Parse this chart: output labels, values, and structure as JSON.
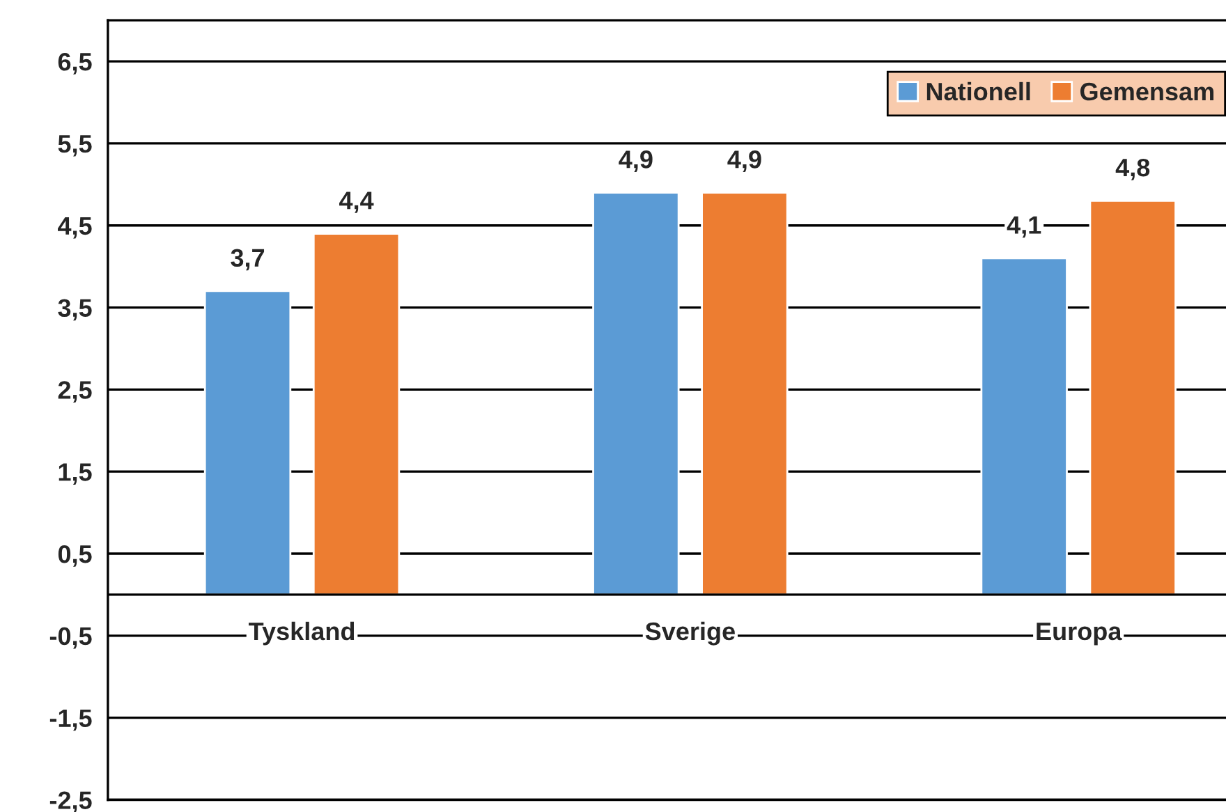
{
  "chart_data": {
    "type": "bar",
    "categories": [
      "Tyskland",
      "Sverige",
      "Europa"
    ],
    "series": [
      {
        "name": "Nationell",
        "color": "#5b9bd5",
        "values": [
          3.7,
          4.9,
          4.1
        ],
        "value_labels": [
          "3,7",
          "4,9",
          "4,1"
        ]
      },
      {
        "name": "Gemensam",
        "color": "#ed7d31",
        "values": [
          4.4,
          4.9,
          4.8
        ],
        "value_labels": [
          "4,4",
          "4,9",
          "4,8"
        ]
      }
    ],
    "ylim": [
      -2.5,
      7.0
    ],
    "yticks": [
      {
        "value": -2.5,
        "label": "-2,5"
      },
      {
        "value": -1.5,
        "label": "-1,5"
      },
      {
        "value": -0.5,
        "label": "-0,5"
      },
      {
        "value": 0.5,
        "label": "0,5"
      },
      {
        "value": 1.5,
        "label": "1,5"
      },
      {
        "value": 2.5,
        "label": "2,5"
      },
      {
        "value": 3.5,
        "label": "3,5"
      },
      {
        "value": 4.5,
        "label": "4,5"
      },
      {
        "value": 5.5,
        "label": "5,5"
      },
      {
        "value": 6.5,
        "label": "6,5"
      }
    ],
    "ref_lines": [
      {
        "axis": "y",
        "value": 0,
        "color": "#000000"
      }
    ],
    "grid": "y",
    "legend": "top right"
  }
}
